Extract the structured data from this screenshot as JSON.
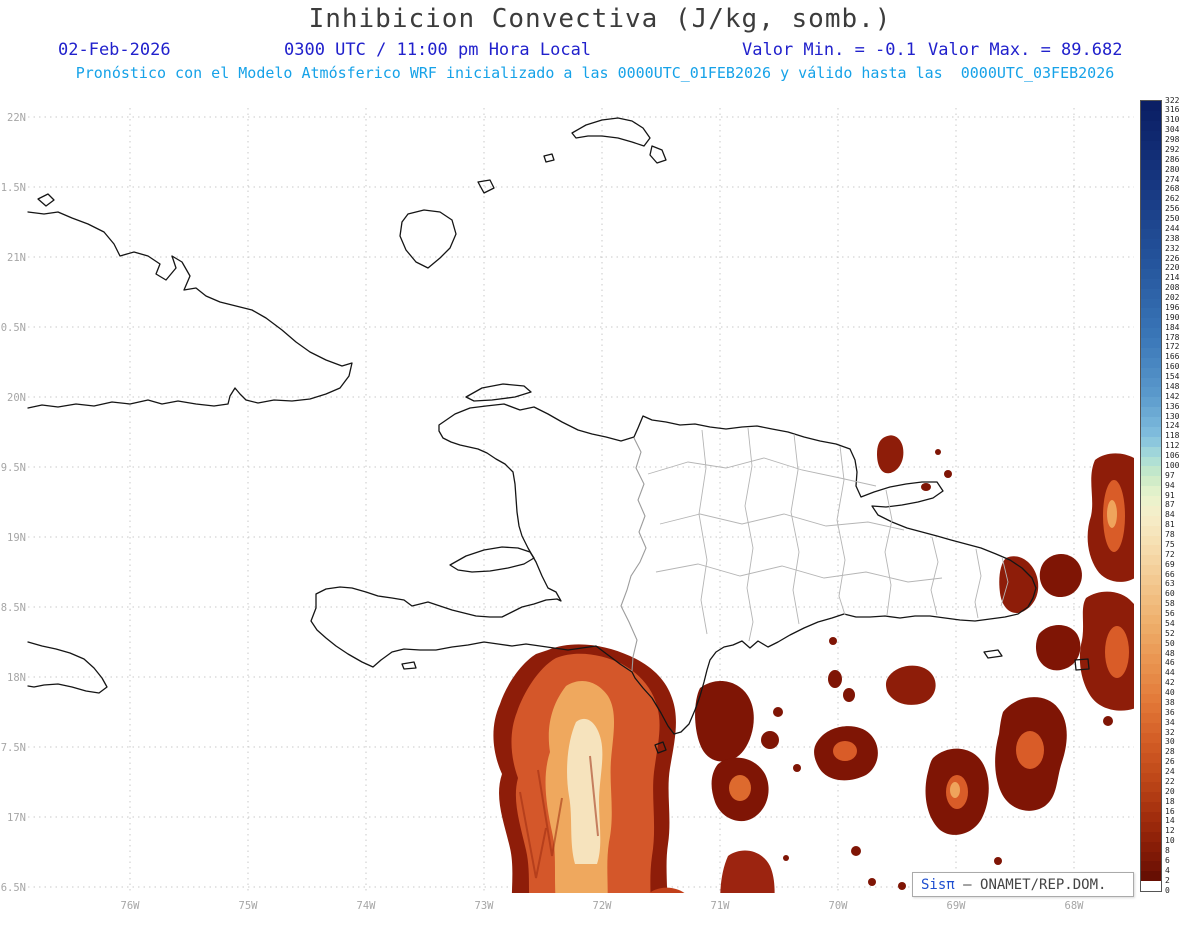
{
  "title": "Inhibicion Convectiva (J/kg, somb.)",
  "header": {
    "date": "02-Feb-2026",
    "time_local": "0300 UTC / 11:00 pm Hora Local",
    "valor_min": "Valor Min. = -0.1",
    "valor_max": "Valor Max. = 89.682",
    "forecast": "Pronóstico con el Modelo Atmósferico WRF inicializado a las 0000UTC_01FEB2026 y válido hasta las  0000UTC_03FEB2026"
  },
  "axes": {
    "lat_labels": [
      "22N",
      "21.5N",
      "21N",
      "20.5N",
      "20N",
      "19.5N",
      "19N",
      "18.5N",
      "18N",
      "17.5N",
      "17N",
      "16.5N"
    ],
    "lon_labels": [
      "76W",
      "75W",
      "74W",
      "73W",
      "72W",
      "71W",
      "70W",
      "69W",
      "68W"
    ]
  },
  "colorbar": {
    "values": [
      322,
      316,
      310,
      304,
      298,
      292,
      286,
      280,
      274,
      268,
      262,
      256,
      250,
      244,
      238,
      232,
      226,
      220,
      214,
      208,
      202,
      196,
      190,
      184,
      178,
      172,
      166,
      160,
      154,
      148,
      142,
      136,
      130,
      124,
      118,
      112,
      106,
      100,
      97,
      94,
      91,
      87,
      84,
      81,
      78,
      75,
      72,
      69,
      66,
      63,
      60,
      58,
      56,
      54,
      52,
      50,
      48,
      46,
      44,
      42,
      40,
      38,
      36,
      34,
      32,
      30,
      28,
      26,
      24,
      22,
      20,
      18,
      16,
      14,
      12,
      10,
      8,
      6,
      4,
      2,
      0
    ],
    "anchors": [
      [
        0,
        "#0a1e63"
      ],
      [
        8,
        "#16357f"
      ],
      [
        16,
        "#24539b"
      ],
      [
        24,
        "#3a77b8"
      ],
      [
        30,
        "#5c9bcd"
      ],
      [
        34,
        "#83c0de"
      ],
      [
        36,
        "#a8dcd9"
      ],
      [
        38,
        "#c9eac6"
      ],
      [
        40,
        "#e9f3cd"
      ],
      [
        42,
        "#f6eec9"
      ],
      [
        45,
        "#f6deb0"
      ],
      [
        49,
        "#f2c68c"
      ],
      [
        53,
        "#eeae6a"
      ],
      [
        57,
        "#e9934f"
      ],
      [
        61,
        "#e27737"
      ],
      [
        65,
        "#d25c25"
      ],
      [
        69,
        "#bc4517"
      ],
      [
        72,
        "#a5300e"
      ],
      [
        75,
        "#8c1f08"
      ],
      [
        78,
        "#6f1204"
      ],
      [
        79,
        "#5e0b02"
      ]
    ]
  },
  "credit": {
    "system": "Sis",
    "pi": "π",
    "org": " – ONAMET/REP.DOM."
  }
}
